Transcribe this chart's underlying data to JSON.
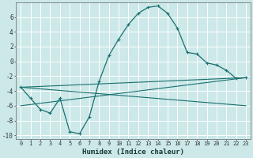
{
  "xlabel": "Humidex (Indice chaleur)",
  "background_color": "#cce8e8",
  "grid_color": "#b8d8d8",
  "line_color": "#1a7070",
  "xlim": [
    -0.5,
    23.5
  ],
  "ylim": [
    -10.5,
    8.0
  ],
  "yticks": [
    -10,
    -8,
    -6,
    -4,
    -2,
    0,
    2,
    4,
    6
  ],
  "xticks": [
    0,
    1,
    2,
    3,
    4,
    5,
    6,
    7,
    8,
    9,
    10,
    11,
    12,
    13,
    14,
    15,
    16,
    17,
    18,
    19,
    20,
    21,
    22,
    23
  ],
  "series_main": {
    "x": [
      0,
      1,
      2,
      3,
      4,
      5,
      6,
      7,
      8,
      9,
      10,
      11,
      12,
      13,
      14,
      15,
      16,
      17,
      18,
      19,
      20,
      21,
      22,
      23
    ],
    "y": [
      -3.5,
      -5.0,
      -6.5,
      -7.0,
      -5.0,
      -9.5,
      -9.8,
      -7.5,
      -2.7,
      0.8,
      3.0,
      5.0,
      6.5,
      7.3,
      7.5,
      6.5,
      4.5,
      1.2,
      1.0,
      -0.2,
      -0.5,
      -1.2,
      -2.3,
      -2.2
    ]
  },
  "series_lines": [
    {
      "x": [
        0,
        23
      ],
      "y": [
        -3.5,
        -2.2
      ]
    },
    {
      "x": [
        0,
        23
      ],
      "y": [
        -6.0,
        -2.2
      ]
    },
    {
      "x": [
        0,
        23
      ],
      "y": [
        -3.5,
        -6.0
      ]
    }
  ]
}
